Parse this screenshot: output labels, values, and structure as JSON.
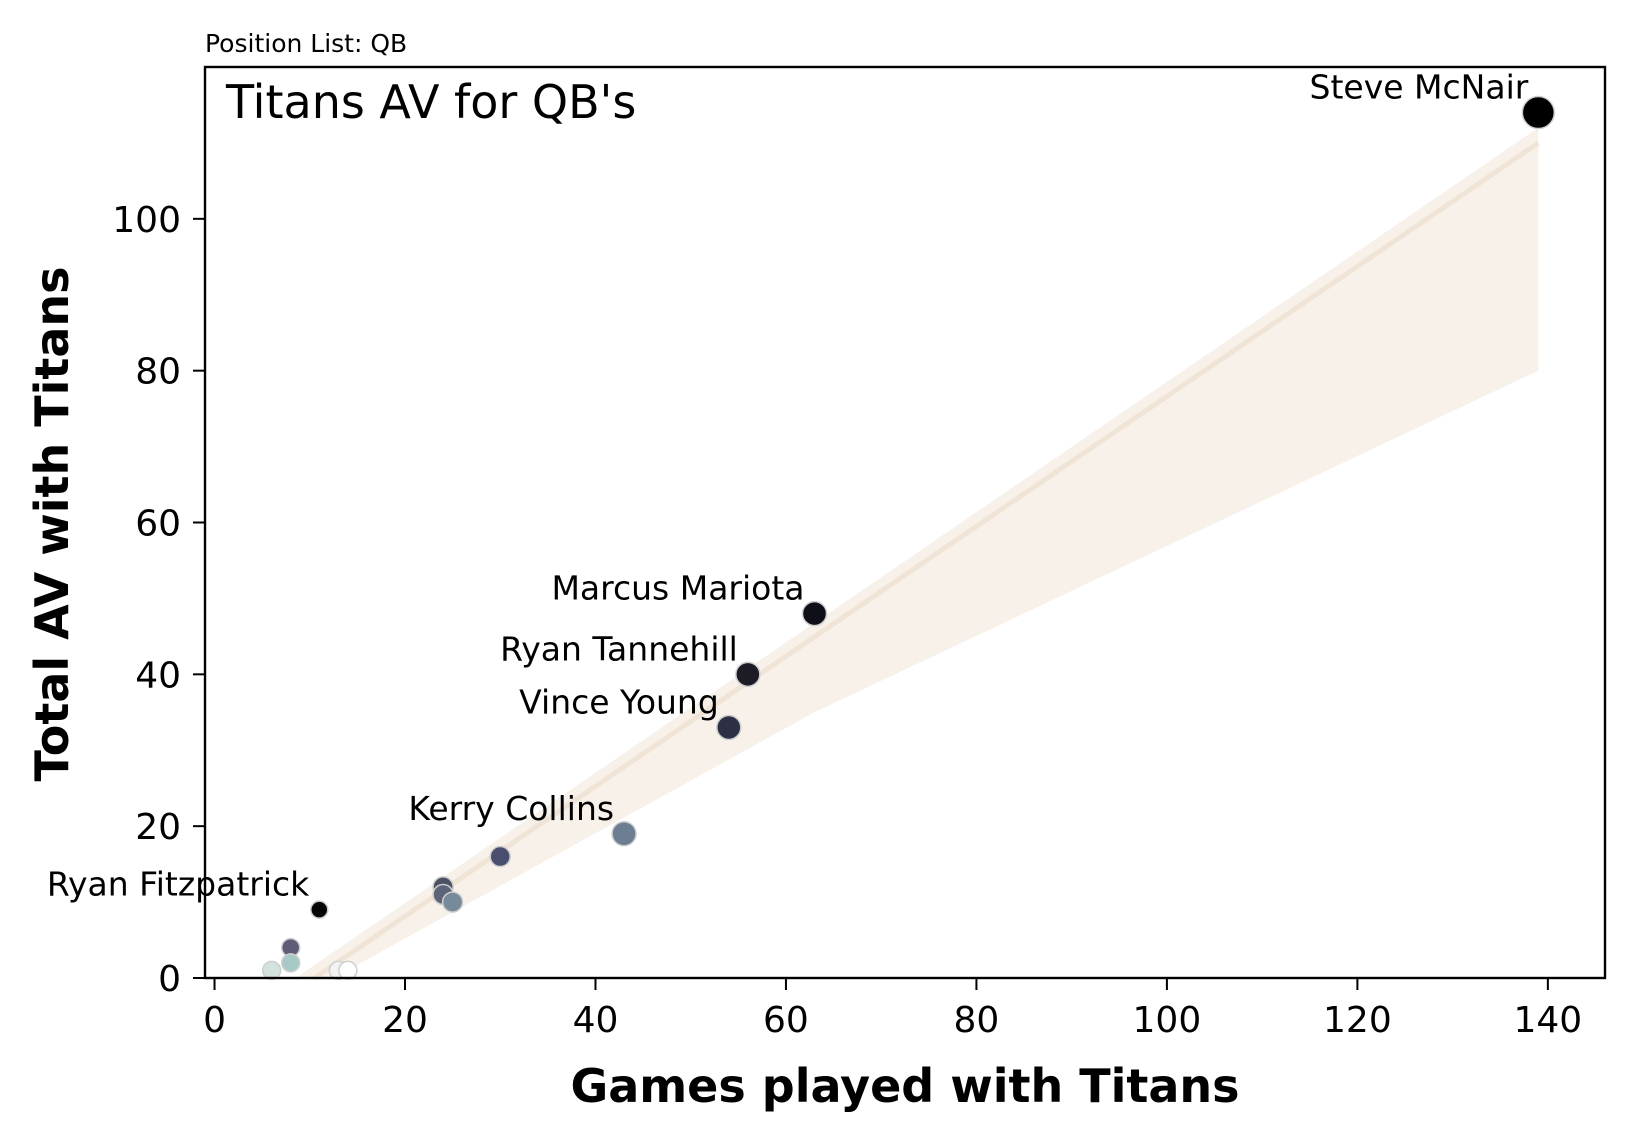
{
  "chart_data": {
    "type": "scatter",
    "title": "Titans AV for QB's",
    "subtitle": "Position List: QB",
    "xlabel": "Games played with Titans",
    "ylabel": "Total AV with Titans",
    "xlim": [
      -1,
      146
    ],
    "ylim": [
      0,
      120
    ],
    "xticks": [
      0,
      20,
      40,
      60,
      80,
      100,
      120,
      140
    ],
    "yticks": [
      0,
      20,
      40,
      60,
      80,
      100
    ],
    "grid": false,
    "points": [
      {
        "x": 139,
        "y": 114,
        "color": "#000000",
        "size": 16,
        "label": "Steve McNair"
      },
      {
        "x": 63,
        "y": 48,
        "color": "#0f0f17",
        "size": 12,
        "label": "Marcus Mariota"
      },
      {
        "x": 56,
        "y": 40,
        "color": "#1c1b26",
        "size": 12,
        "label": "Ryan Tannehill"
      },
      {
        "x": 54,
        "y": 33,
        "color": "#2d2f45",
        "size": 12,
        "label": "Vince Young"
      },
      {
        "x": 43,
        "y": 19,
        "color": "#6d7e93",
        "size": 12,
        "label": "Kerry Collins"
      },
      {
        "x": 11,
        "y": 9,
        "color": "#050505",
        "size": 8.5,
        "label": "Ryan Fitzpatrick"
      },
      {
        "x": 30,
        "y": 16,
        "color": "#4a4e6e",
        "size": 10,
        "label": ""
      },
      {
        "x": 24,
        "y": 12,
        "color": "#4d5166",
        "size": 10,
        "label": ""
      },
      {
        "x": 24,
        "y": 11,
        "color": "#5e6478",
        "size": 10,
        "label": ""
      },
      {
        "x": 25,
        "y": 10,
        "color": "#778a99",
        "size": 10,
        "label": ""
      },
      {
        "x": 8,
        "y": 4,
        "color": "#5d5d78",
        "size": 9,
        "label": ""
      },
      {
        "x": 8,
        "y": 2,
        "color": "#a6c9c6",
        "size": 9,
        "label": ""
      },
      {
        "x": 6,
        "y": 1,
        "color": "#d2e2de",
        "size": 9,
        "label": ""
      },
      {
        "x": 13,
        "y": 1,
        "color": "#f3f3f3",
        "size": 9,
        "label": ""
      },
      {
        "x": 14,
        "y": 1,
        "color": "#ffffff",
        "size": 9,
        "label": ""
      }
    ],
    "regression": {
      "line": [
        [
          10.5,
          0
        ],
        [
          139,
          110
        ]
      ],
      "ci_upper": [
        [
          8.5,
          0
        ],
        [
          139,
          112
        ]
      ],
      "ci_lower": [
        [
          12.5,
          0
        ],
        [
          63,
          35
        ],
        [
          139,
          80
        ]
      ],
      "line_color": "#efe4d5",
      "band_color": "#f7f1ea"
    }
  }
}
